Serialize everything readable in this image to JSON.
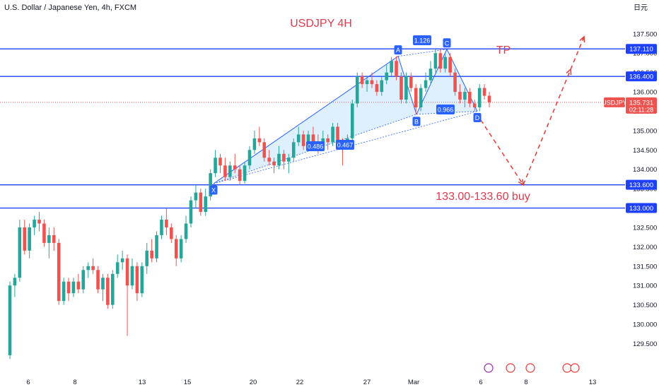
{
  "header": {
    "symbol_title": "U.S. Dollar / Japanese Yen, 4h, FXCM",
    "currency_label": "日元"
  },
  "chart_data": {
    "type": "candlestick",
    "title": "USDJPY 4H",
    "y_axis_ticks": [
      137.5,
      137.0,
      136.5,
      136.0,
      135.5,
      135.0,
      134.5,
      134.0,
      133.5,
      133.0,
      132.5,
      132.0,
      131.5,
      131.0,
      130.5,
      130.0,
      129.5
    ],
    "y_axis_tick_labels": [
      "137.500",
      "137.000",
      "136.500",
      "136.000",
      "135.500",
      "135.000",
      "134.500",
      "134.000",
      "133.500",
      "133.000",
      "132.500",
      "132.000",
      "131.500",
      "131.000",
      "130.500",
      "130.000",
      "129.500"
    ],
    "ylim": [
      129.18,
      137.88
    ],
    "x_axis_ticks": [
      "6",
      "8",
      "13",
      "15",
      "20",
      "22",
      "27",
      "Mar",
      "6",
      "8",
      "13"
    ],
    "horizontal_levels": [
      {
        "value": 137.11,
        "label": "137.110"
      },
      {
        "value": 136.4,
        "label": "136.400"
      },
      {
        "value": 133.6,
        "label": "133.600"
      },
      {
        "value": 133.0,
        "label": "133.000"
      }
    ],
    "current_price": {
      "symbol": "USDJPY",
      "value": "135.731",
      "countdown": "02:11:28",
      "level": 135.731
    },
    "pattern_points": [
      {
        "label": "X",
        "price": 133.63
      },
      {
        "label": "A",
        "price": 136.92
      },
      {
        "label": "B",
        "price": 135.42
      },
      {
        "label": "C",
        "price": 137.1
      },
      {
        "label": "D",
        "price": 135.5
      }
    ],
    "pattern_ratios": [
      "0.486",
      "0.467",
      "1.126",
      "0.966"
    ],
    "annotations": {
      "target": "TP",
      "buy_zone": "133.00-133.60 buy"
    },
    "ohlc": [
      [
        129.2,
        131.1,
        129.1,
        131.0
      ],
      [
        131.0,
        131.3,
        130.7,
        131.2
      ],
      [
        131.2,
        132.7,
        131.1,
        132.5
      ],
      [
        132.5,
        132.7,
        131.8,
        131.9
      ],
      [
        131.9,
        132.6,
        131.7,
        132.5
      ],
      [
        132.5,
        132.8,
        132.3,
        132.7
      ],
      [
        132.7,
        132.9,
        132.4,
        132.6
      ],
      [
        132.6,
        132.7,
        132.0,
        132.1
      ],
      [
        132.1,
        132.5,
        131.7,
        132.3
      ],
      [
        132.3,
        132.5,
        131.9,
        132.1
      ],
      [
        132.1,
        132.2,
        130.5,
        130.6
      ],
      [
        130.6,
        131.2,
        130.5,
        131.1
      ],
      [
        131.1,
        131.2,
        130.6,
        130.8
      ],
      [
        130.8,
        131.2,
        130.7,
        131.1
      ],
      [
        131.1,
        131.3,
        130.8,
        130.9
      ],
      [
        130.9,
        131.5,
        130.8,
        131.4
      ],
      [
        131.4,
        131.6,
        131.2,
        131.5
      ],
      [
        131.5,
        131.7,
        131.3,
        131.4
      ],
      [
        131.4,
        131.5,
        130.8,
        130.9
      ],
      [
        130.9,
        131.3,
        130.6,
        131.2
      ],
      [
        131.2,
        131.3,
        130.4,
        130.5
      ],
      [
        130.5,
        131.4,
        130.4,
        131.3
      ],
      [
        131.3,
        131.8,
        131.2,
        131.6
      ],
      [
        131.6,
        131.9,
        131.4,
        131.7
      ],
      [
        131.7,
        131.8,
        129.7,
        131.0
      ],
      [
        131.0,
        131.7,
        130.9,
        131.5
      ],
      [
        131.5,
        131.6,
        130.6,
        130.8
      ],
      [
        130.8,
        131.6,
        130.7,
        131.5
      ],
      [
        131.5,
        132.1,
        131.3,
        131.9
      ],
      [
        131.9,
        132.2,
        131.6,
        131.7
      ],
      [
        131.7,
        132.4,
        131.6,
        132.3
      ],
      [
        132.3,
        132.8,
        132.2,
        132.7
      ],
      [
        132.7,
        133.0,
        132.3,
        132.5
      ],
      [
        132.5,
        132.6,
        132.1,
        132.2
      ],
      [
        132.2,
        132.3,
        131.5,
        131.7
      ],
      [
        131.7,
        132.3,
        131.6,
        132.2
      ],
      [
        132.2,
        132.8,
        132.1,
        132.6
      ],
      [
        132.6,
        133.3,
        132.5,
        133.2
      ],
      [
        133.2,
        133.6,
        133.0,
        133.4
      ],
      [
        133.4,
        133.5,
        132.8,
        132.9
      ],
      [
        132.9,
        133.5,
        132.8,
        133.3
      ],
      [
        133.3,
        134.0,
        133.2,
        133.9
      ],
      [
        133.9,
        134.5,
        133.8,
        134.3
      ],
      [
        134.3,
        134.4,
        133.9,
        134.1
      ],
      [
        134.1,
        134.3,
        133.7,
        133.8
      ],
      [
        133.8,
        134.2,
        133.7,
        134.1
      ],
      [
        134.1,
        134.4,
        133.9,
        134.0
      ],
      [
        134.0,
        134.1,
        133.6,
        133.7
      ],
      [
        133.7,
        134.2,
        133.63,
        134.1
      ],
      [
        134.1,
        134.6,
        134.0,
        134.5
      ],
      [
        134.5,
        135.0,
        134.4,
        134.8
      ],
      [
        134.8,
        135.1,
        134.6,
        134.7
      ],
      [
        134.7,
        134.8,
        134.2,
        134.3
      ],
      [
        134.3,
        134.5,
        134.1,
        134.2
      ],
      [
        134.2,
        134.3,
        133.9,
        134.1
      ],
      [
        134.1,
        134.6,
        134.0,
        134.4
      ],
      [
        134.4,
        134.5,
        134.0,
        134.2
      ],
      [
        134.2,
        134.4,
        133.9,
        134.3
      ],
      [
        134.3,
        134.8,
        134.2,
        134.7
      ],
      [
        134.7,
        135.1,
        134.6,
        134.9
      ],
      [
        134.9,
        135.0,
        134.5,
        134.6
      ],
      [
        134.6,
        135.0,
        134.5,
        134.9
      ],
      [
        134.9,
        135.1,
        134.6,
        134.7
      ],
      [
        134.7,
        134.9,
        134.4,
        134.6
      ],
      [
        134.6,
        135.0,
        134.5,
        134.8
      ],
      [
        134.8,
        134.9,
        134.5,
        134.7
      ],
      [
        134.7,
        135.2,
        134.6,
        135.1
      ],
      [
        135.1,
        135.2,
        134.6,
        134.7
      ],
      [
        134.7,
        134.8,
        134.1,
        134.6
      ],
      [
        134.6,
        134.9,
        134.5,
        134.8
      ],
      [
        134.8,
        135.8,
        134.7,
        135.7
      ],
      [
        135.7,
        136.5,
        135.6,
        136.4
      ],
      [
        136.4,
        136.5,
        136.1,
        136.2
      ],
      [
        136.2,
        136.4,
        136.0,
        136.3
      ],
      [
        136.3,
        136.5,
        136.1,
        136.2
      ],
      [
        136.2,
        136.3,
        135.9,
        136.0
      ],
      [
        136.0,
        136.4,
        135.9,
        136.3
      ],
      [
        136.3,
        136.7,
        136.2,
        136.5
      ],
      [
        136.5,
        136.9,
        136.4,
        136.8
      ],
      [
        136.8,
        136.92,
        136.3,
        136.4
      ],
      [
        136.4,
        136.5,
        135.7,
        135.8
      ],
      [
        135.8,
        136.5,
        135.7,
        136.4
      ],
      [
        136.4,
        136.5,
        136.0,
        136.1
      ],
      [
        136.1,
        136.2,
        135.42,
        135.6
      ],
      [
        135.6,
        136.2,
        135.5,
        136.1
      ],
      [
        136.1,
        136.5,
        136.0,
        136.3
      ],
      [
        136.3,
        136.8,
        136.2,
        136.6
      ],
      [
        136.6,
        137.1,
        136.5,
        137.0
      ],
      [
        137.0,
        137.1,
        136.5,
        136.6
      ],
      [
        136.6,
        137.0,
        136.5,
        136.9
      ],
      [
        136.9,
        137.0,
        136.4,
        136.5
      ],
      [
        136.5,
        136.6,
        135.9,
        136.0
      ],
      [
        136.0,
        136.2,
        135.7,
        135.8
      ],
      [
        135.8,
        136.1,
        135.6,
        136.0
      ],
      [
        136.0,
        136.1,
        135.6,
        135.7
      ],
      [
        135.7,
        135.8,
        135.5,
        135.6
      ],
      [
        135.6,
        136.2,
        135.5,
        136.1
      ],
      [
        136.1,
        136.2,
        135.8,
        135.9
      ],
      [
        135.9,
        136.0,
        135.6,
        135.73
      ]
    ]
  }
}
